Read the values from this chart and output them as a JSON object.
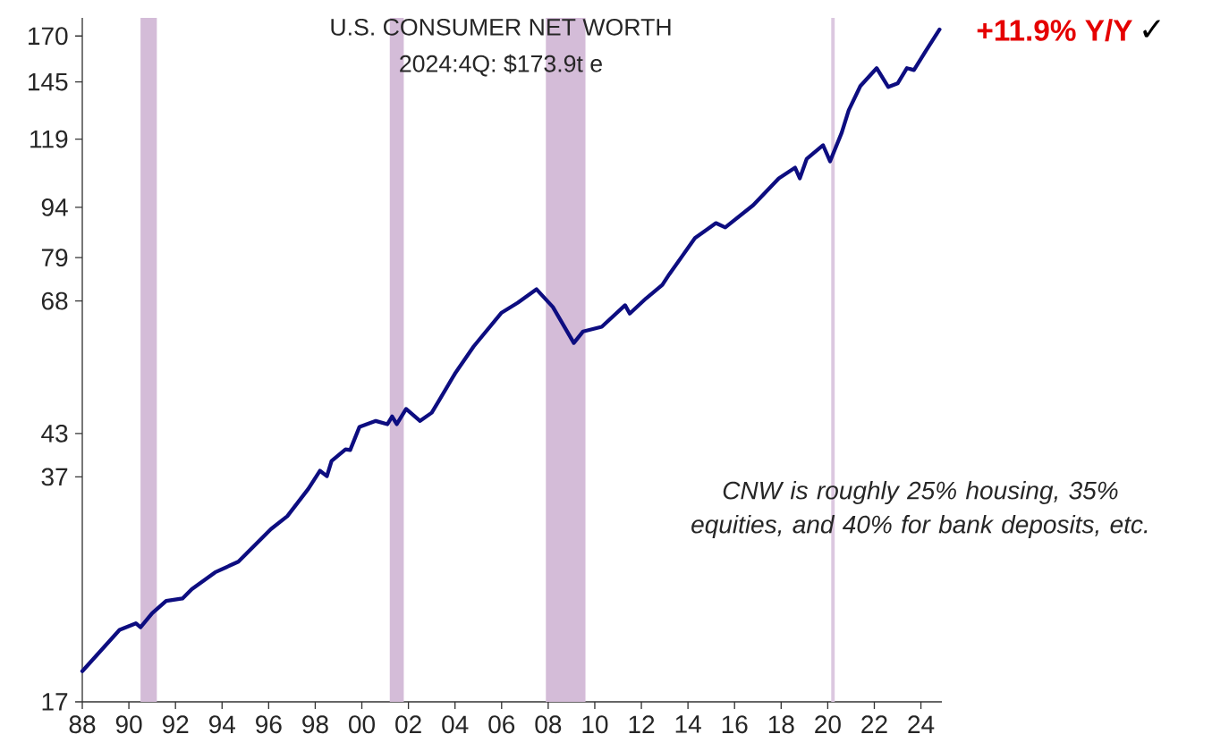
{
  "chart_data": {
    "type": "line",
    "title": "U.S. CONSUMER NET WORTH",
    "subtitle": "2024:4Q: $173.9t e",
    "annotations": [
      "+11.9% Y/Y",
      "✓",
      "CNW is roughly 25% housing, 35% equities, and 40% for bank deposits, etc."
    ],
    "x": [
      1988.0,
      1989.6,
      1990.3,
      1990.5,
      1991.0,
      1991.6,
      1992.3,
      1992.7,
      1993.7,
      1994.7,
      1996.1,
      1996.8,
      1997.7,
      1998.2,
      1998.5,
      1998.7,
      1999.3,
      1999.5,
      1999.9,
      2000.6,
      2001.1,
      2001.3,
      2001.5,
      2001.9,
      2002.5,
      2003.0,
      2003.3,
      2004.0,
      2004.8,
      2006.0,
      2006.7,
      2007.5,
      2008.2,
      2009.1,
      2009.5,
      2010.3,
      2011.3,
      2011.5,
      2012.2,
      2012.9,
      2013.2,
      2014.3,
      2015.2,
      2015.6,
      2016.8,
      2017.9,
      2018.6,
      2018.8,
      2019.1,
      2019.8,
      2020.1,
      2020.6,
      2020.9,
      2021.4,
      2022.1,
      2022.6,
      2023.0,
      2023.4,
      2023.7,
      2024.2,
      2024.8
    ],
    "series": [
      {
        "color": "#0d0d80",
        "values": [
          18.9,
          21.8,
          22.3,
          22.0,
          23.1,
          24.1,
          24.3,
          25.1,
          26.6,
          27.6,
          30.9,
          32.3,
          35.5,
          37.8,
          37.1,
          39.1,
          40.7,
          40.6,
          44.0,
          44.9,
          44.4,
          45.6,
          44.4,
          46.8,
          44.9,
          46.2,
          48.1,
          52.9,
          58.1,
          65.3,
          67.6,
          70.8,
          66.6,
          58.8,
          61.2,
          62.2,
          67.0,
          65.1,
          68.6,
          71.9,
          74.6,
          84.5,
          89.0,
          87.7,
          94.7,
          103.9,
          107.8,
          103.9,
          111.2,
          116.5,
          110.2,
          121.7,
          131.5,
          143.0,
          152.1,
          142.5,
          144.3,
          152.1,
          151.1,
          161.3,
          173.9
        ]
      }
    ],
    "log": true,
    "xlim": [
      1988,
      2024.9
    ],
    "xticks": [
      {
        "value": 1988,
        "label": "88"
      },
      {
        "value": 1990,
        "label": "90"
      },
      {
        "value": 1992,
        "label": "92"
      },
      {
        "value": 1994,
        "label": "94"
      },
      {
        "value": 1996,
        "label": "96"
      },
      {
        "value": 1998,
        "label": "98"
      },
      {
        "value": 2000,
        "label": "00"
      },
      {
        "value": 2002,
        "label": "02"
      },
      {
        "value": 2004,
        "label": "04"
      },
      {
        "value": 2006,
        "label": "06"
      },
      {
        "value": 2008,
        "label": "08"
      },
      {
        "value": 2010,
        "label": "10"
      },
      {
        "value": 2012,
        "label": "12"
      },
      {
        "value": 2014,
        "label": "14"
      },
      {
        "value": 2016,
        "label": "16"
      },
      {
        "value": 2018,
        "label": "18"
      },
      {
        "value": 2020,
        "label": "20"
      },
      {
        "value": 2022,
        "label": "22"
      },
      {
        "value": 2024,
        "label": "24"
      }
    ],
    "ylim": [
      17,
      181
    ],
    "yticks": [
      17,
      37,
      43,
      68,
      79,
      94,
      119,
      145,
      170
    ],
    "bands": [
      {
        "axis": "x",
        "from": 1990.5,
        "to": 1991.2,
        "color": "#d4bcd8"
      },
      {
        "axis": "x",
        "from": 2001.2,
        "to": 2001.8,
        "color": "#d4bcd8"
      },
      {
        "axis": "x",
        "from": 2007.9,
        "to": 2009.6,
        "color": "#d4bcd8"
      },
      {
        "axis": "x",
        "from": 2020.15,
        "to": 2020.3,
        "color": "#dcc8e0"
      }
    ]
  }
}
